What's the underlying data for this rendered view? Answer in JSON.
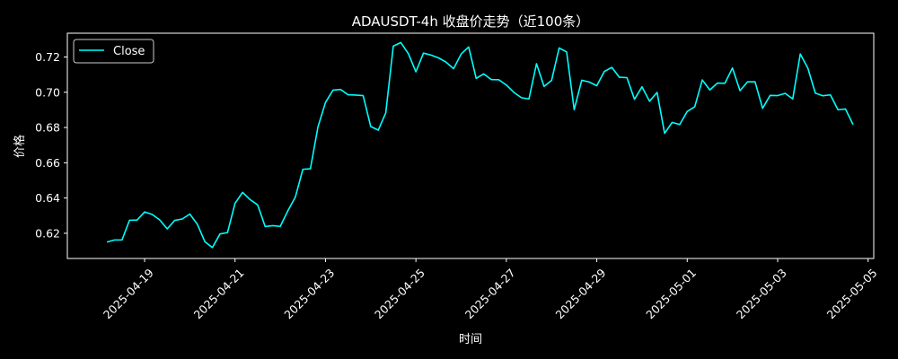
{
  "chart_data": {
    "type": "line",
    "title": "ADAUSDT-4h 收盘价走势（近100条）",
    "xlabel": "时间",
    "ylabel": "价格",
    "line_color": "#00ffff",
    "background": "#000000",
    "legend_position": "top-left",
    "grid": false,
    "xlim": [
      "2025-04-17T07:00",
      "2025-05-05T03:00"
    ],
    "ylim": [
      0.6057,
      0.7335
    ],
    "y_ticks": [
      0.62,
      0.64,
      0.66,
      0.68,
      0.7,
      0.72
    ],
    "y_tick_labels": [
      "0.62",
      "0.64",
      "0.66",
      "0.68",
      "0.70",
      "0.72"
    ],
    "x_ticks": [
      "2025-04-19",
      "2025-04-21",
      "2025-04-23",
      "2025-04-25",
      "2025-04-27",
      "2025-04-29",
      "2025-05-01",
      "2025-05-03",
      "2025-05-05"
    ],
    "x_tick_labels": [
      "2025-04-19",
      "2025-04-21",
      "2025-04-23",
      "2025-04-25",
      "2025-04-27",
      "2025-04-29",
      "2025-05-01",
      "2025-05-03",
      "2025-05-05"
    ],
    "series": [
      {
        "name": "Close",
        "color": "#00ffff",
        "x": [
          "2025-04-18T04:00",
          "2025-04-18T08:00",
          "2025-04-18T12:00",
          "2025-04-18T16:00",
          "2025-04-18T20:00",
          "2025-04-19T00:00",
          "2025-04-19T04:00",
          "2025-04-19T08:00",
          "2025-04-19T12:00",
          "2025-04-19T16:00",
          "2025-04-19T20:00",
          "2025-04-20T00:00",
          "2025-04-20T04:00",
          "2025-04-20T08:00",
          "2025-04-20T12:00",
          "2025-04-20T16:00",
          "2025-04-20T20:00",
          "2025-04-21T00:00",
          "2025-04-21T04:00",
          "2025-04-21T08:00",
          "2025-04-21T12:00",
          "2025-04-21T16:00",
          "2025-04-21T20:00",
          "2025-04-22T00:00",
          "2025-04-22T04:00",
          "2025-04-22T08:00",
          "2025-04-22T12:00",
          "2025-04-22T16:00",
          "2025-04-22T20:00",
          "2025-04-23T00:00",
          "2025-04-23T04:00",
          "2025-04-23T08:00",
          "2025-04-23T12:00",
          "2025-04-23T16:00",
          "2025-04-23T20:00",
          "2025-04-24T00:00",
          "2025-04-24T04:00",
          "2025-04-24T08:00",
          "2025-04-24T12:00",
          "2025-04-24T16:00",
          "2025-04-24T20:00",
          "2025-04-25T00:00",
          "2025-04-25T04:00",
          "2025-04-25T08:00",
          "2025-04-25T12:00",
          "2025-04-25T16:00",
          "2025-04-25T20:00",
          "2025-04-26T00:00",
          "2025-04-26T04:00",
          "2025-04-26T08:00",
          "2025-04-26T12:00",
          "2025-04-26T16:00",
          "2025-04-26T20:00",
          "2025-04-27T00:00",
          "2025-04-27T04:00",
          "2025-04-27T08:00",
          "2025-04-27T12:00",
          "2025-04-27T16:00",
          "2025-04-27T20:00",
          "2025-04-28T00:00",
          "2025-04-28T04:00",
          "2025-04-28T08:00",
          "2025-04-28T12:00",
          "2025-04-28T16:00",
          "2025-04-28T20:00",
          "2025-04-29T00:00",
          "2025-04-29T04:00",
          "2025-04-29T08:00",
          "2025-04-29T12:00",
          "2025-04-29T16:00",
          "2025-04-29T20:00",
          "2025-04-30T00:00",
          "2025-04-30T04:00",
          "2025-04-30T08:00",
          "2025-04-30T12:00",
          "2025-04-30T16:00",
          "2025-04-30T20:00",
          "2025-05-01T00:00",
          "2025-05-01T04:00",
          "2025-05-01T08:00",
          "2025-05-01T12:00",
          "2025-05-01T16:00",
          "2025-05-01T20:00",
          "2025-05-02T00:00",
          "2025-05-02T04:00",
          "2025-05-02T08:00",
          "2025-05-02T12:00",
          "2025-05-02T16:00",
          "2025-05-02T20:00",
          "2025-05-03T00:00",
          "2025-05-03T04:00",
          "2025-05-03T08:00",
          "2025-05-03T12:00",
          "2025-05-03T16:00",
          "2025-05-03T20:00",
          "2025-05-04T00:00",
          "2025-05-04T04:00",
          "2025-05-04T08:00",
          "2025-05-04T12:00",
          "2025-05-04T16:00"
        ],
        "values": [
          0.615,
          0.6162,
          0.6162,
          0.6274,
          0.6275,
          0.6321,
          0.6307,
          0.6276,
          0.6225,
          0.6273,
          0.6281,
          0.6309,
          0.6251,
          0.6152,
          0.6119,
          0.6196,
          0.6204,
          0.637,
          0.6432,
          0.6391,
          0.6361,
          0.6238,
          0.6243,
          0.6239,
          0.6327,
          0.6405,
          0.6563,
          0.6566,
          0.6803,
          0.6942,
          0.7012,
          0.7016,
          0.6986,
          0.6984,
          0.6981,
          0.6806,
          0.6785,
          0.6883,
          0.7262,
          0.7282,
          0.7219,
          0.7116,
          0.7222,
          0.7211,
          0.7195,
          0.7171,
          0.7134,
          0.7217,
          0.7257,
          0.7079,
          0.7104,
          0.7072,
          0.7071,
          0.7041,
          0.6999,
          0.6969,
          0.6962,
          0.7162,
          0.7033,
          0.7067,
          0.7251,
          0.7229,
          0.6901,
          0.7068,
          0.7058,
          0.7037,
          0.7118,
          0.7141,
          0.7085,
          0.7083,
          0.696,
          0.7031,
          0.6949,
          0.6999,
          0.6767,
          0.6829,
          0.6817,
          0.6891,
          0.6918,
          0.707,
          0.7013,
          0.7052,
          0.7051,
          0.7138,
          0.7009,
          0.7059,
          0.7059,
          0.6909,
          0.6982,
          0.6981,
          0.6994,
          0.6962,
          0.7217,
          0.7137,
          0.6995,
          0.698,
          0.6985,
          0.6901,
          0.6905,
          0.6817
        ]
      }
    ]
  }
}
